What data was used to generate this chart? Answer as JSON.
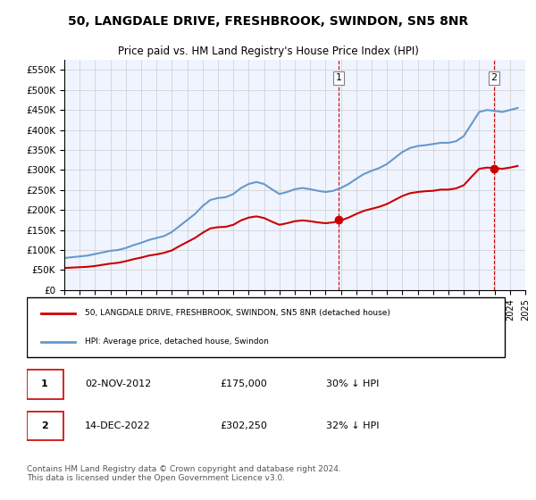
{
  "title": "50, LANGDALE DRIVE, FRESHBROOK, SWINDON, SN5 8NR",
  "subtitle": "Price paid vs. HM Land Registry's House Price Index (HPI)",
  "ylabel_ticks": [
    "£0",
    "£50K",
    "£100K",
    "£150K",
    "£200K",
    "£250K",
    "£300K",
    "£350K",
    "£400K",
    "£450K",
    "£500K",
    "£550K"
  ],
  "ytick_values": [
    0,
    50000,
    100000,
    150000,
    200000,
    250000,
    300000,
    350000,
    400000,
    450000,
    500000,
    550000
  ],
  "ylim": [
    0,
    575000
  ],
  "background_color": "#f0f4ff",
  "plot_bg": "#f0f4ff",
  "grid_color": "#cccccc",
  "hpi_color": "#6699cc",
  "price_color": "#cc0000",
  "marker1_date_x": 2012.84,
  "marker1_price_y": 175000,
  "marker2_date_x": 2022.95,
  "marker2_price_y": 302250,
  "annotation1_label": "1",
  "annotation2_label": "2",
  "legend_price_label": "50, LANGDALE DRIVE, FRESHBROOK, SWINDON, SN5 8NR (detached house)",
  "legend_hpi_label": "HPI: Average price, detached house, Swindon",
  "table_row1": [
    "1",
    "02-NOV-2012",
    "£175,000",
    "30% ↓ HPI"
  ],
  "table_row2": [
    "2",
    "14-DEC-2022",
    "£302,250",
    "32% ↓ HPI"
  ],
  "footnote": "Contains HM Land Registry data © Crown copyright and database right 2024.\nThis data is licensed under the Open Government Licence v3.0.",
  "hpi_data": {
    "years": [
      1995,
      1995.5,
      1996,
      1996.5,
      1997,
      1997.5,
      1998,
      1998.5,
      1999,
      1999.5,
      2000,
      2000.5,
      2001,
      2001.5,
      2002,
      2002.5,
      2003,
      2003.5,
      2004,
      2004.5,
      2005,
      2005.5,
      2006,
      2006.5,
      2007,
      2007.5,
      2008,
      2008.5,
      2009,
      2009.5,
      2010,
      2010.5,
      2011,
      2011.5,
      2012,
      2012.5,
      2013,
      2013.5,
      2014,
      2014.5,
      2015,
      2015.5,
      2016,
      2016.5,
      2017,
      2017.5,
      2018,
      2018.5,
      2019,
      2019.5,
      2020,
      2020.5,
      2021,
      2021.5,
      2022,
      2022.5,
      2023,
      2023.5,
      2024,
      2024.5
    ],
    "values": [
      80000,
      82000,
      84000,
      86000,
      90000,
      94000,
      98000,
      100000,
      105000,
      112000,
      118000,
      125000,
      130000,
      135000,
      145000,
      160000,
      175000,
      190000,
      210000,
      225000,
      230000,
      232000,
      240000,
      255000,
      265000,
      270000,
      265000,
      252000,
      240000,
      245000,
      252000,
      255000,
      252000,
      248000,
      245000,
      248000,
      255000,
      265000,
      278000,
      290000,
      298000,
      305000,
      315000,
      330000,
      345000,
      355000,
      360000,
      362000,
      365000,
      368000,
      368000,
      372000,
      385000,
      415000,
      445000,
      450000,
      448000,
      445000,
      450000,
      455000
    ]
  },
  "price_data": {
    "years": [
      1995,
      1995.5,
      1996,
      1996.5,
      1997,
      1997.5,
      1998,
      1998.5,
      1999,
      1999.5,
      2000,
      2000.5,
      2001,
      2001.5,
      2002,
      2002.5,
      2003,
      2003.5,
      2004,
      2004.5,
      2005,
      2005.5,
      2006,
      2006.5,
      2007,
      2007.5,
      2008,
      2008.5,
      2009,
      2009.5,
      2010,
      2010.5,
      2011,
      2011.5,
      2012,
      2012.5,
      2013,
      2013.5,
      2014,
      2014.5,
      2015,
      2015.5,
      2016,
      2016.5,
      2017,
      2017.5,
      2018,
      2018.5,
      2019,
      2019.5,
      2020,
      2020.5,
      2021,
      2021.5,
      2022,
      2022.5,
      2023,
      2023.5,
      2024,
      2024.5
    ],
    "values": [
      55000,
      56000,
      57000,
      58000,
      60000,
      63000,
      66000,
      68000,
      72000,
      77000,
      81000,
      86000,
      89000,
      93000,
      99000,
      110000,
      120000,
      130000,
      143000,
      154000,
      157000,
      158000,
      163000,
      174000,
      181000,
      184000,
      180000,
      171000,
      163000,
      167000,
      172000,
      174000,
      172000,
      169000,
      167000,
      169000,
      174000,
      181000,
      190000,
      198000,
      203000,
      208000,
      215000,
      225000,
      235000,
      242000,
      245000,
      247000,
      248000,
      251000,
      251000,
      254000,
      262000,
      283000,
      303000,
      306000,
      305000,
      303000,
      306000,
      310000
    ]
  },
  "dashed_line1_x": 2012.84,
  "dashed_line2_x": 2022.95,
  "xmin": 1995,
  "xmax": 2025
}
